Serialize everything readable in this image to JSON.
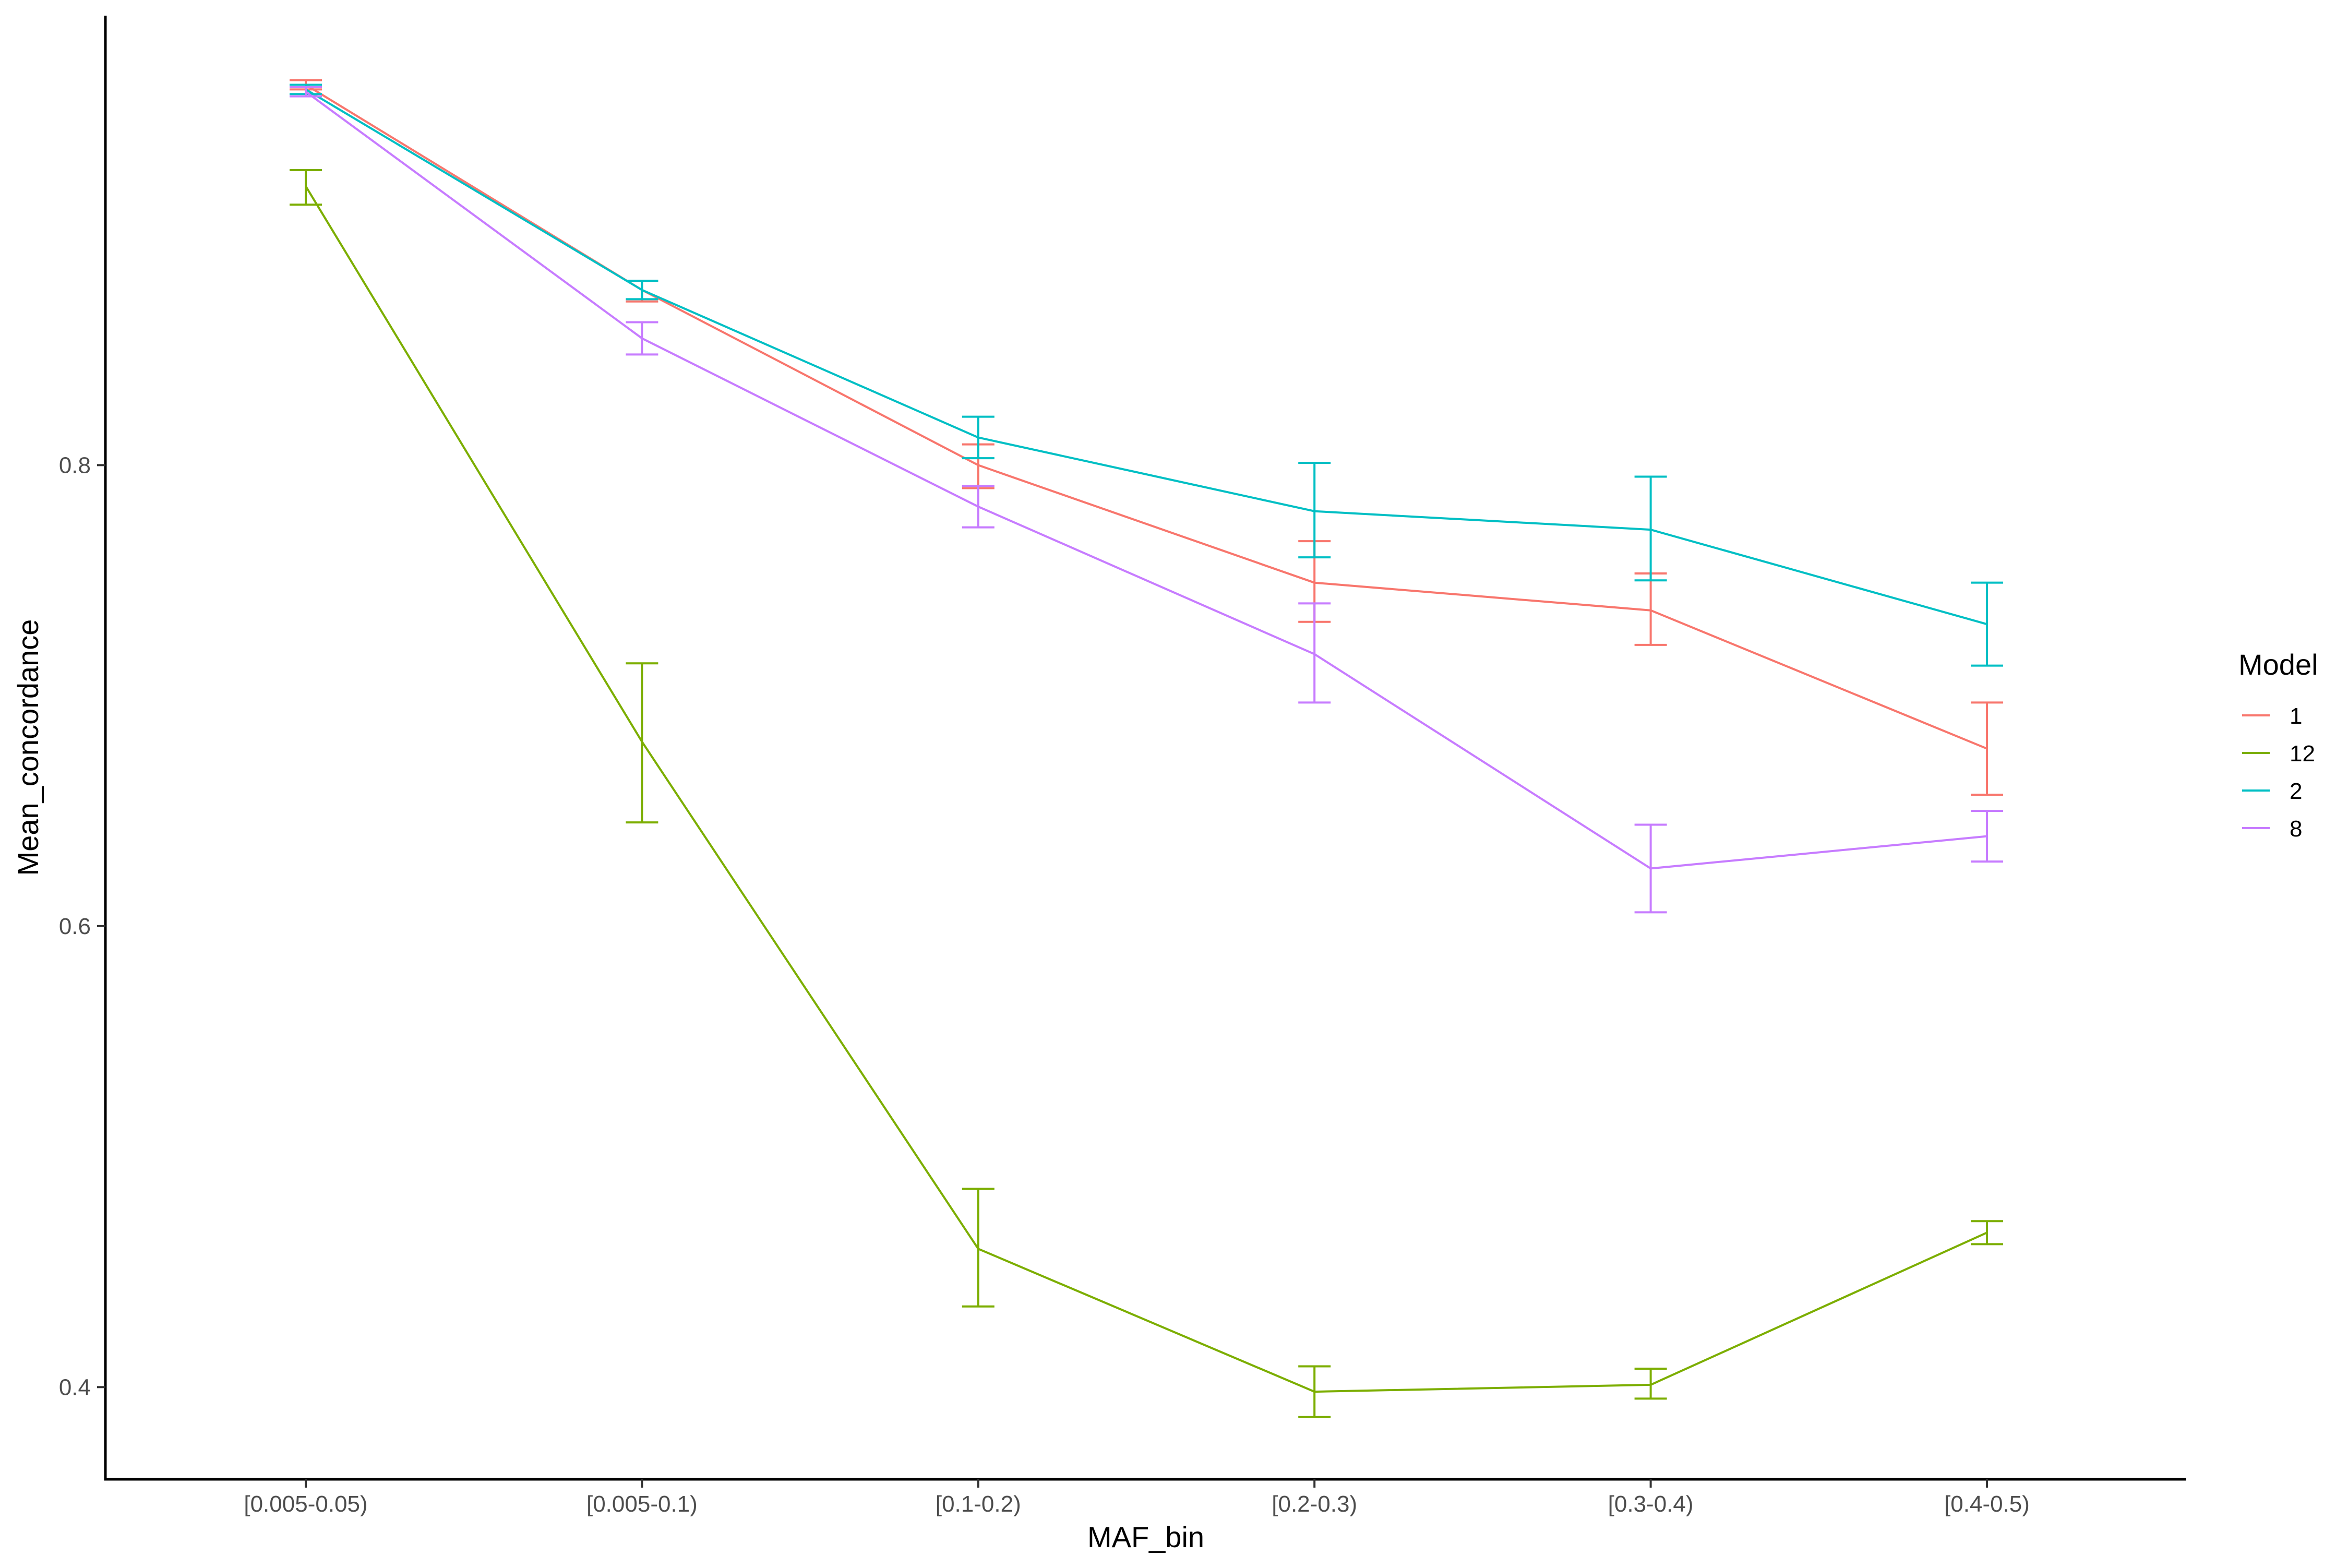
{
  "chart_data": {
    "type": "line",
    "title": "",
    "xlabel": "MAF_bin",
    "ylabel": "Mean_concordance",
    "categories": [
      "[0.005-0.05)",
      "[0.005-0.1)",
      "[0.1-0.2)",
      "[0.2-0.3)",
      "[0.3-0.4)",
      "[0.4-0.5)"
    ],
    "ylim": [
      0.36,
      0.995
    ],
    "yticks": [
      0.4,
      0.6,
      0.8
    ],
    "ytick_labels": [
      "0.4",
      "0.6",
      "0.8"
    ],
    "grid": false,
    "error_bars": true,
    "legend": {
      "title": "Model",
      "position": "right"
    },
    "series": [
      {
        "name": "1",
        "color": "#F8766D",
        "values": [
          0.965,
          0.876,
          0.8,
          0.749,
          0.737,
          0.677
        ],
        "lower": [
          0.963,
          0.871,
          0.79,
          0.732,
          0.722,
          0.657
        ],
        "upper": [
          0.967,
          0.88,
          0.809,
          0.767,
          0.753,
          0.697
        ]
      },
      {
        "name": "12",
        "color": "#7CAE00",
        "values": [
          0.921,
          0.68,
          0.46,
          0.398,
          0.401,
          0.467
        ],
        "lower": [
          0.913,
          0.645,
          0.435,
          0.387,
          0.395,
          0.462
        ],
        "upper": [
          0.928,
          0.714,
          0.486,
          0.409,
          0.408,
          0.472
        ]
      },
      {
        "name": "2",
        "color": "#00BFC4",
        "values": [
          0.963,
          0.876,
          0.812,
          0.78,
          0.772,
          0.731
        ],
        "lower": [
          0.961,
          0.872,
          0.803,
          0.76,
          0.75,
          0.713
        ],
        "upper": [
          0.965,
          0.88,
          0.821,
          0.801,
          0.795,
          0.749
        ]
      },
      {
        "name": "8",
        "color": "#C77CFF",
        "values": [
          0.962,
          0.855,
          0.782,
          0.718,
          0.625,
          0.639
        ],
        "lower": [
          0.96,
          0.848,
          0.773,
          0.697,
          0.606,
          0.628
        ],
        "upper": [
          0.964,
          0.862,
          0.791,
          0.74,
          0.644,
          0.65
        ]
      }
    ]
  }
}
